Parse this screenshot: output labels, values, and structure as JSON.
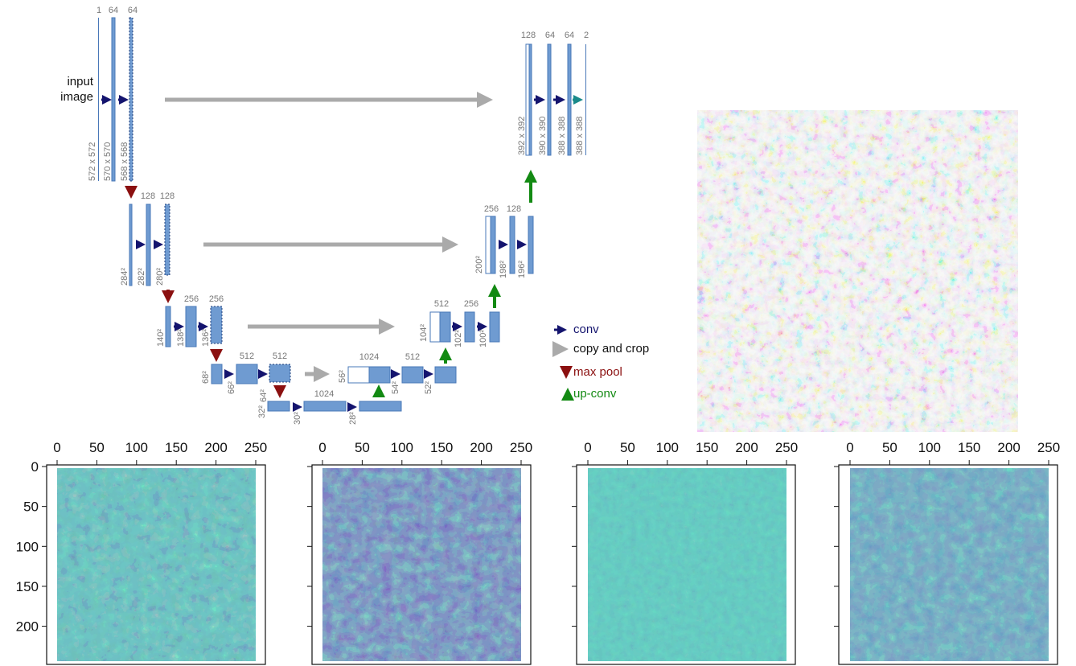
{
  "unet": {
    "input_label": "input image",
    "channels": [
      1,
      64,
      64,
      128,
      128,
      128,
      256,
      256,
      256,
      512,
      512,
      512,
      1024,
      1024,
      512,
      512,
      256,
      256,
      128,
      128,
      64,
      64,
      2
    ],
    "sizes": [
      "572 x 572",
      "570 x 570",
      "568 x 568",
      "284²",
      "282²",
      "280²",
      "140²",
      "138²",
      "136²",
      "68²",
      "66²",
      "64²",
      "32²",
      "30²",
      "28²",
      "56²",
      "54²",
      "52²",
      "104²",
      "102²",
      "100²",
      "200²",
      "198²",
      "196²",
      "392 x 392",
      "390 x 390",
      "388 x 388",
      "388 x 388"
    ],
    "legend": [
      "conv",
      "copy and crop",
      "max pool",
      "up-conv"
    ]
  },
  "feature_maps": {
    "xticks": [
      0,
      50,
      100,
      150,
      200,
      250
    ],
    "yticks": [
      0,
      50,
      100,
      150,
      200
    ]
  }
}
